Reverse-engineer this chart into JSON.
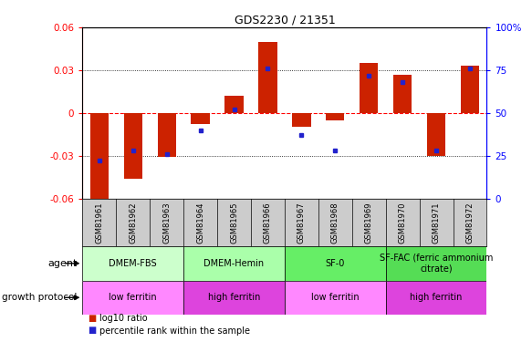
{
  "title": "GDS2230 / 21351",
  "samples": [
    "GSM81961",
    "GSM81962",
    "GSM81963",
    "GSM81964",
    "GSM81965",
    "GSM81966",
    "GSM81967",
    "GSM81968",
    "GSM81969",
    "GSM81970",
    "GSM81971",
    "GSM81972"
  ],
  "log10_ratio": [
    -0.062,
    -0.046,
    -0.031,
    -0.008,
    0.012,
    0.05,
    -0.01,
    -0.005,
    0.035,
    0.027,
    -0.03,
    0.033
  ],
  "percentile_rank": [
    22,
    28,
    26,
    40,
    52,
    76,
    37,
    28,
    72,
    68,
    28,
    76
  ],
  "ylim": [
    -0.06,
    0.06
  ],
  "y2lim": [
    0,
    100
  ],
  "yticks": [
    -0.06,
    -0.03,
    0,
    0.03,
    0.06
  ],
  "y2ticks": [
    0,
    25,
    50,
    75,
    100
  ],
  "bar_color": "#cc2200",
  "dot_color": "#2222cc",
  "agent_groups": [
    {
      "label": "DMEM-FBS",
      "start": 0,
      "end": 3,
      "color": "#ccffcc"
    },
    {
      "label": "DMEM-Hemin",
      "start": 3,
      "end": 6,
      "color": "#aaffaa"
    },
    {
      "label": "SF-0",
      "start": 6,
      "end": 9,
      "color": "#66ee66"
    },
    {
      "label": "SF-FAC (ferric ammonium\ncitrate)",
      "start": 9,
      "end": 12,
      "color": "#55dd55"
    }
  ],
  "growth_groups": [
    {
      "label": "low ferritin",
      "start": 0,
      "end": 3,
      "color": "#ff88ff"
    },
    {
      "label": "high ferritin",
      "start": 3,
      "end": 6,
      "color": "#dd44dd"
    },
    {
      "label": "low ferritin",
      "start": 6,
      "end": 9,
      "color": "#ff88ff"
    },
    {
      "label": "high ferritin",
      "start": 9,
      "end": 12,
      "color": "#dd44dd"
    }
  ],
  "legend_bar_color": "#cc2200",
  "legend_dot_color": "#2222cc",
  "legend_bar_label": "log10 ratio",
  "legend_dot_label": "percentile rank within the sample",
  "background_color": "#ffffff",
  "zero_line_color": "#ff0000",
  "dot_line_color": "#000000"
}
